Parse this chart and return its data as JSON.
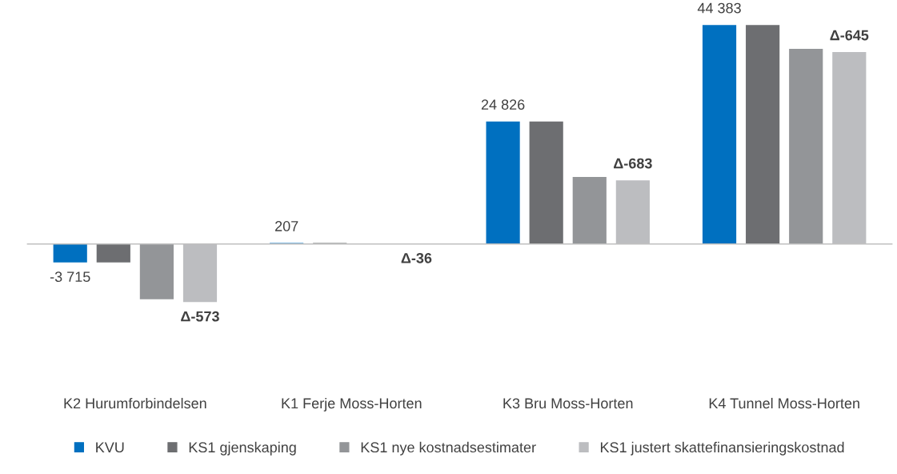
{
  "chart_data": {
    "type": "bar",
    "categories": [
      "K2 Hurumforbindelsen",
      "K1 Ferje Moss-Horten",
      "K3 Bru Moss-Horten",
      "K4 Tunnel Moss-Horten"
    ],
    "series": [
      {
        "name": "KVU",
        "color": "#0070c0",
        "values": [
          -3715,
          207,
          24826,
          44383
        ],
        "value_labels": [
          "-3 715",
          "207",
          "24 826",
          "44 383"
        ]
      },
      {
        "name": "KS1 gjenskaping",
        "color": "#6d6e71",
        "values": [
          -3715,
          207,
          24826,
          44383
        ]
      },
      {
        "name": "KS1 nye kostnadsestimater",
        "color": "#939598",
        "values": [
          -11170,
          100,
          13600,
          39520
        ]
      },
      {
        "name": "KS1 justert skattefinansieringskostnad",
        "color": "#bcbdc0",
        "values": [
          -11743,
          64,
          12917,
          38875
        ],
        "value_labels": [
          "Δ-573",
          "Δ-36",
          "Δ-683",
          "Δ-645"
        ]
      }
    ],
    "legend": "bottom",
    "grid": false
  }
}
